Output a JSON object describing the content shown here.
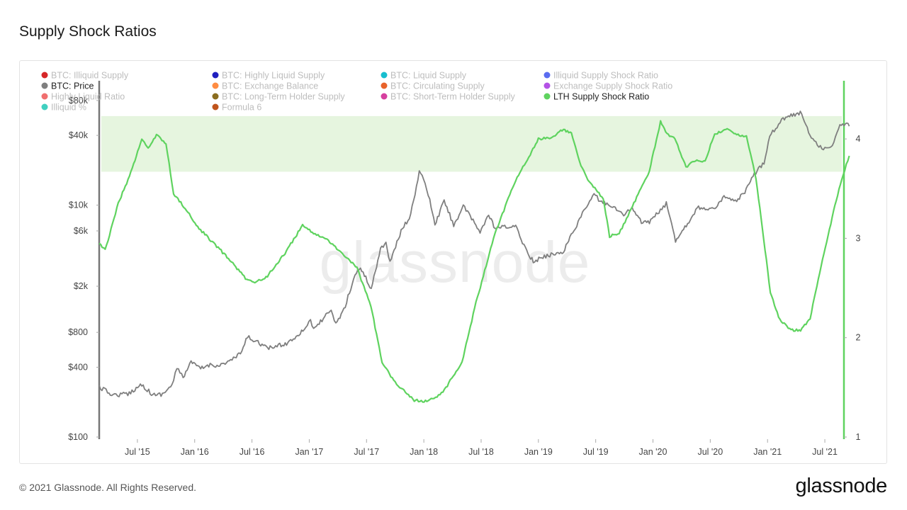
{
  "page": {
    "title": "Supply Shock Ratios"
  },
  "footer": {
    "copyright": "© 2021 Glassnode. All Rights Reserved.",
    "logo": "glassnode"
  },
  "watermark": "glassnode",
  "colors": {
    "price": "#7f7f7f",
    "ratio": "#5fd35f",
    "band": "#e6f5df",
    "left_axis": "#777777",
    "right_axis": "#5fd35f"
  },
  "chart_data": {
    "type": "line",
    "title": "Supply Shock Ratios",
    "legend": [
      {
        "label": "BTC: Illiquid Supply",
        "color": "#d62728",
        "active": false
      },
      {
        "label": "BTC: Highly Liquid Supply",
        "color": "#1f1fbf",
        "active": false
      },
      {
        "label": "BTC: Liquid Supply",
        "color": "#17becf",
        "active": false
      },
      {
        "label": "Illiquid Supply Shock Ratio",
        "color": "#5a6cf0",
        "active": false
      },
      {
        "label": "BTC: Price",
        "color": "#7f7f7f",
        "active": true
      },
      {
        "label": "BTC: Exchange Balance",
        "color": "#ff8c42",
        "active": false
      },
      {
        "label": "BTC: Circulating Supply",
        "color": "#e8632b",
        "active": false
      },
      {
        "label": "Exchange Supply Shock Ratio",
        "color": "#b452e6",
        "active": false
      },
      {
        "label": "Highly Liquid Ratio",
        "color": "#f06f6f",
        "active": false
      },
      {
        "label": "BTC: Long-Term Holder Supply",
        "color": "#8b6d1f",
        "active": false
      },
      {
        "label": "BTC: Short-Term Holder Supply",
        "color": "#d6409f",
        "active": false
      },
      {
        "label": "LTH Supply Shock Ratio",
        "color": "#5fd35f",
        "active": true
      },
      {
        "label": "Illiquid %",
        "color": "#40d0c0",
        "active": false
      },
      {
        "label": "Formula 6",
        "color": "#c0541c",
        "active": false
      }
    ],
    "x_ticks": [
      "Jul '15",
      "Jan '16",
      "Jul '16",
      "Jan '17",
      "Jul '17",
      "Jan '18",
      "Jul '18",
      "Jan '19",
      "Jul '19",
      "Jan '20",
      "Jul '20",
      "Jan '21",
      "Jul '21"
    ],
    "x_range": [
      "2015-03",
      "2021-09"
    ],
    "left_axis": {
      "scale": "log",
      "ticks": [
        {
          "label": "$100",
          "value": 100
        },
        {
          "label": "$400",
          "value": 400
        },
        {
          "label": "$800",
          "value": 800
        },
        {
          "label": "$2k",
          "value": 2000
        },
        {
          "label": "$6k",
          "value": 6000
        },
        {
          "label": "$10k",
          "value": 10000
        },
        {
          "label": "$40k",
          "value": 40000
        },
        {
          "label": "$80k",
          "value": 80000
        }
      ],
      "range": [
        100,
        100000
      ]
    },
    "right_axis": {
      "scale": "linear",
      "ticks": [
        {
          "label": "1",
          "value": 1
        },
        {
          "label": "2",
          "value": 2
        },
        {
          "label": "3",
          "value": 3
        },
        {
          "label": "4",
          "value": 4
        }
      ],
      "range": [
        1,
        4.5
      ]
    },
    "band": {
      "from": 3.67,
      "to": 4.23
    },
    "series": [
      {
        "name": "BTC: Price",
        "axis": "left",
        "points": [
          [
            "2015-03-01",
            270
          ],
          [
            "2015-04-15",
            230
          ],
          [
            "2015-06-01",
            235
          ],
          [
            "2015-07-15",
            285
          ],
          [
            "2015-08-20",
            230
          ],
          [
            "2015-09-20",
            235
          ],
          [
            "2015-10-20",
            280
          ],
          [
            "2015-11-05",
            390
          ],
          [
            "2015-11-25",
            330
          ],
          [
            "2015-12-20",
            440
          ],
          [
            "2016-01-20",
            390
          ],
          [
            "2016-02-20",
            420
          ],
          [
            "2016-03-20",
            415
          ],
          [
            "2016-04-20",
            450
          ],
          [
            "2016-05-25",
            520
          ],
          [
            "2016-06-17",
            730
          ],
          [
            "2016-07-20",
            660
          ],
          [
            "2016-08-20",
            580
          ],
          [
            "2016-09-20",
            610
          ],
          [
            "2016-10-20",
            640
          ],
          [
            "2016-11-20",
            740
          ],
          [
            "2016-12-20",
            880
          ],
          [
            "2017-01-05",
            1050
          ],
          [
            "2017-01-15",
            830
          ],
          [
            "2017-02-20",
            1100
          ],
          [
            "2017-03-10",
            1200
          ],
          [
            "2017-03-25",
            950
          ],
          [
            "2017-04-20",
            1250
          ],
          [
            "2017-05-25",
            2500
          ],
          [
            "2017-06-12",
            2900
          ],
          [
            "2017-07-16",
            1900
          ],
          [
            "2017-08-15",
            4200
          ],
          [
            "2017-09-02",
            4800
          ],
          [
            "2017-09-15",
            3200
          ],
          [
            "2017-10-20",
            6000
          ],
          [
            "2017-11-20",
            8200
          ],
          [
            "2017-12-17",
            19500
          ],
          [
            "2018-01-05",
            15500
          ],
          [
            "2018-01-20",
            11000
          ],
          [
            "2018-02-06",
            6700
          ],
          [
            "2018-03-05",
            11000
          ],
          [
            "2018-04-05",
            6700
          ],
          [
            "2018-05-05",
            9800
          ],
          [
            "2018-06-28",
            5900
          ],
          [
            "2018-07-25",
            8200
          ],
          [
            "2018-08-15",
            6300
          ],
          [
            "2018-09-20",
            6500
          ],
          [
            "2018-10-20",
            6500
          ],
          [
            "2018-11-20",
            4300
          ],
          [
            "2018-12-15",
            3250
          ],
          [
            "2019-01-20",
            3600
          ],
          [
            "2019-02-20",
            3800
          ],
          [
            "2019-03-20",
            4000
          ],
          [
            "2019-04-10",
            5200
          ],
          [
            "2019-05-15",
            8000
          ],
          [
            "2019-06-26",
            12500
          ],
          [
            "2019-07-20",
            10500
          ],
          [
            "2019-08-15",
            10200
          ],
          [
            "2019-09-25",
            8300
          ],
          [
            "2019-10-26",
            9300
          ],
          [
            "2019-11-25",
            7100
          ],
          [
            "2019-12-20",
            7200
          ],
          [
            "2020-01-20",
            8700
          ],
          [
            "2020-02-13",
            10300
          ],
          [
            "2020-03-12",
            5000
          ],
          [
            "2020-04-20",
            7000
          ],
          [
            "2020-05-20",
            9500
          ],
          [
            "2020-06-20",
            9400
          ],
          [
            "2020-07-20",
            9200
          ],
          [
            "2020-08-10",
            11800
          ],
          [
            "2020-09-20",
            10700
          ],
          [
            "2020-10-20",
            12800
          ],
          [
            "2020-11-20",
            18500
          ],
          [
            "2020-12-20",
            23500
          ],
          [
            "2021-01-08",
            40000
          ],
          [
            "2021-02-20",
            56000
          ],
          [
            "2021-03-15",
            59000
          ],
          [
            "2021-04-14",
            63000
          ],
          [
            "2021-05-19",
            38000
          ],
          [
            "2021-06-22",
            31000
          ],
          [
            "2021-07-20",
            30500
          ],
          [
            "2021-08-14",
            47000
          ],
          [
            "2021-09-06",
            51000
          ],
          [
            "2021-09-18",
            48000
          ]
        ]
      },
      {
        "name": "LTH Supply Shock Ratio",
        "axis": "right",
        "points": [
          [
            "2015-03-01",
            2.95
          ],
          [
            "2015-03-20",
            2.88
          ],
          [
            "2015-05-01",
            3.35
          ],
          [
            "2015-06-15",
            3.7
          ],
          [
            "2015-07-15",
            4.0
          ],
          [
            "2015-08-05",
            3.9
          ],
          [
            "2015-09-01",
            4.04
          ],
          [
            "2015-10-01",
            3.95
          ],
          [
            "2015-10-25",
            3.45
          ],
          [
            "2015-12-01",
            3.3
          ],
          [
            "2016-01-15",
            3.1
          ],
          [
            "2016-03-01",
            2.95
          ],
          [
            "2016-05-01",
            2.75
          ],
          [
            "2016-06-15",
            2.58
          ],
          [
            "2016-07-10",
            2.55
          ],
          [
            "2016-08-20",
            2.62
          ],
          [
            "2016-10-15",
            2.85
          ],
          [
            "2016-12-10",
            3.13
          ],
          [
            "2017-01-15",
            3.05
          ],
          [
            "2017-03-01",
            2.98
          ],
          [
            "2017-04-15",
            2.85
          ],
          [
            "2017-06-01",
            2.7
          ],
          [
            "2017-07-15",
            2.32
          ],
          [
            "2017-08-20",
            1.75
          ],
          [
            "2017-10-01",
            1.55
          ],
          [
            "2017-12-01",
            1.37
          ],
          [
            "2018-01-15",
            1.36
          ],
          [
            "2018-03-01",
            1.45
          ],
          [
            "2018-05-01",
            1.75
          ],
          [
            "2018-06-15",
            2.35
          ],
          [
            "2018-08-15",
            3.05
          ],
          [
            "2018-10-15",
            3.55
          ],
          [
            "2018-12-01",
            3.82
          ],
          [
            "2019-01-01",
            4.0
          ],
          [
            "2019-02-15",
            4.01
          ],
          [
            "2019-03-20",
            4.1
          ],
          [
            "2019-04-15",
            4.05
          ],
          [
            "2019-05-15",
            3.72
          ],
          [
            "2019-06-15",
            3.55
          ],
          [
            "2019-07-25",
            3.4
          ],
          [
            "2019-08-15",
            3.02
          ],
          [
            "2019-09-15",
            3.05
          ],
          [
            "2019-11-01",
            3.35
          ],
          [
            "2019-12-20",
            3.68
          ],
          [
            "2020-01-25",
            4.17
          ],
          [
            "2020-02-15",
            4.05
          ],
          [
            "2020-03-10",
            4.0
          ],
          [
            "2020-04-15",
            3.72
          ],
          [
            "2020-05-15",
            3.78
          ],
          [
            "2020-06-15",
            3.78
          ],
          [
            "2020-07-15",
            4.05
          ],
          [
            "2020-08-20",
            4.1
          ],
          [
            "2020-09-20",
            4.05
          ],
          [
            "2020-10-25",
            4.03
          ],
          [
            "2020-11-25",
            3.6
          ],
          [
            "2020-12-15",
            3.1
          ],
          [
            "2021-01-10",
            2.45
          ],
          [
            "2021-02-10",
            2.18
          ],
          [
            "2021-03-15",
            2.08
          ],
          [
            "2021-04-15",
            2.07
          ],
          [
            "2021-05-15",
            2.2
          ],
          [
            "2021-06-15",
            2.65
          ],
          [
            "2021-07-20",
            3.15
          ],
          [
            "2021-08-20",
            3.55
          ],
          [
            "2021-09-18",
            3.83
          ]
        ]
      }
    ]
  }
}
